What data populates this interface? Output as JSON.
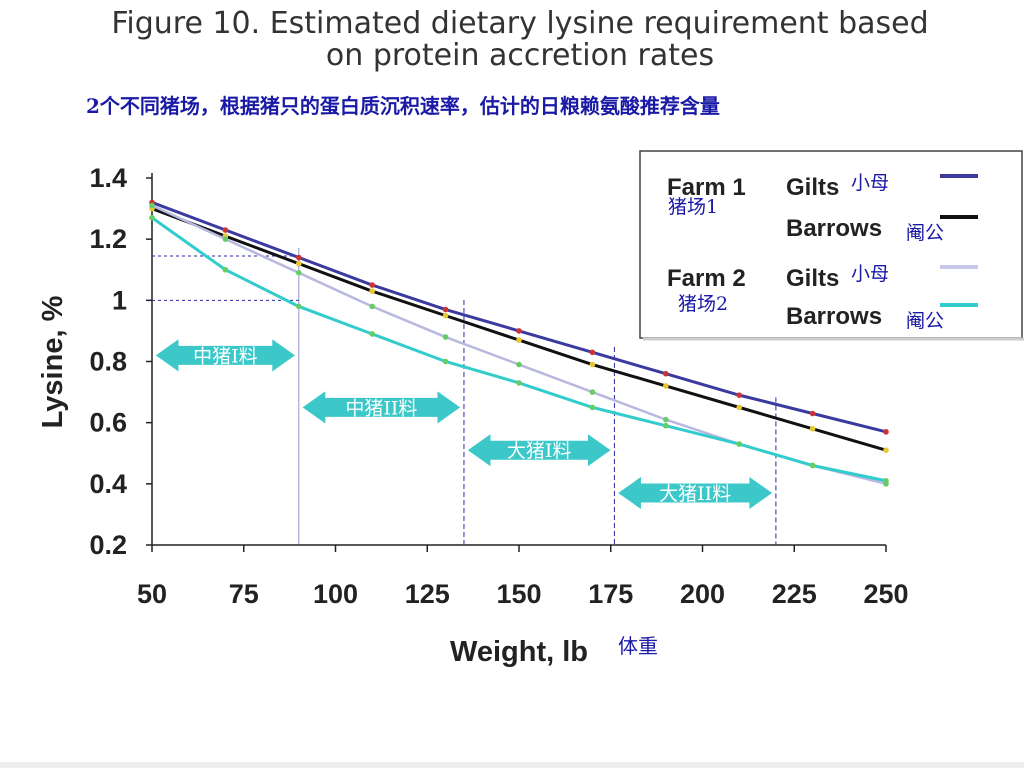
{
  "title_line1": "Figure 10. Estimated dietary lysine requirement based",
  "title_line2": "on protein accretion rates",
  "subtitle_cn": "2个不同猪场，根据猪只的蛋白质沉积速率，估计的日粮赖氨酸推荐含量",
  "chart_data": {
    "type": "line",
    "xlabel": "Weight, lb",
    "xlabel_cn": "体重",
    "ylabel": "Lysine, %",
    "xlim": [
      50,
      250
    ],
    "ylim": [
      0.2,
      1.4
    ],
    "x_ticks": [
      50,
      75,
      100,
      125,
      150,
      175,
      200,
      225,
      250
    ],
    "x_tick_labels": [
      "50",
      "75",
      "100",
      "125",
      "150",
      "175",
      "200",
      "225",
      "250"
    ],
    "y_ticks": [
      0.2,
      0.4,
      0.6,
      0.8,
      1.0,
      1.2,
      1.4
    ],
    "y_tick_labels": [
      "0.2",
      "0.4",
      "0.6",
      "0.8",
      "1",
      "1.2",
      "1.4"
    ],
    "x": [
      50,
      70,
      90,
      110,
      130,
      150,
      170,
      190,
      210,
      230,
      250
    ],
    "series": [
      {
        "name": "Farm 1 Gilts",
        "color": "#3a3aa0",
        "values": [
          1.32,
          1.23,
          1.14,
          1.05,
          0.97,
          0.9,
          0.83,
          0.76,
          0.69,
          0.63,
          0.57
        ]
      },
      {
        "name": "Farm 1 Barrows",
        "color": "#111111",
        "values": [
          1.3,
          1.21,
          1.12,
          1.03,
          0.95,
          0.87,
          0.79,
          0.72,
          0.65,
          0.58,
          0.51
        ]
      },
      {
        "name": "Farm 2 Gilts",
        "color": "#b8b8e0",
        "values": [
          1.31,
          1.2,
          1.09,
          0.98,
          0.88,
          0.79,
          0.7,
          0.61,
          0.53,
          0.46,
          0.4
        ]
      },
      {
        "name": "Farm 2 Barrows",
        "color": "#33cccc",
        "values": [
          1.27,
          1.1,
          0.98,
          0.89,
          0.8,
          0.73,
          0.65,
          0.59,
          0.53,
          0.46,
          0.41
        ]
      }
    ],
    "legend": {
      "position": "top-right",
      "rows": [
        {
          "farm": "Farm 1",
          "type": "Gilts",
          "cn": "小母",
          "color": "#3a3aa0"
        },
        {
          "farm": "",
          "type": "Barrows",
          "cn": "阉公",
          "color": "#111111"
        },
        {
          "farm": "Farm 2",
          "type": "Gilts",
          "cn": "小母",
          "color": "#c8c8e8"
        },
        {
          "farm": "",
          "type": "Barrows",
          "cn": "阉公",
          "color": "#33cccc"
        }
      ],
      "farm1_cn": "猪场1",
      "farm2_cn": "猪场2"
    },
    "reference_lines": {
      "horizontal": [
        1.0,
        1.145
      ],
      "vertical": [
        90,
        135,
        176,
        220
      ]
    },
    "phases": [
      {
        "label": "中猪I料",
        "from": 50,
        "to": 90,
        "y": 0.82
      },
      {
        "label": "中猪II料",
        "from": 90,
        "to": 135,
        "y": 0.65
      },
      {
        "label": "大猪I料",
        "from": 135,
        "to": 176,
        "y": 0.51
      },
      {
        "label": "大猪II料",
        "from": 176,
        "to": 220,
        "y": 0.37
      }
    ],
    "phase_color": "#3cc8c8",
    "grid": false
  }
}
